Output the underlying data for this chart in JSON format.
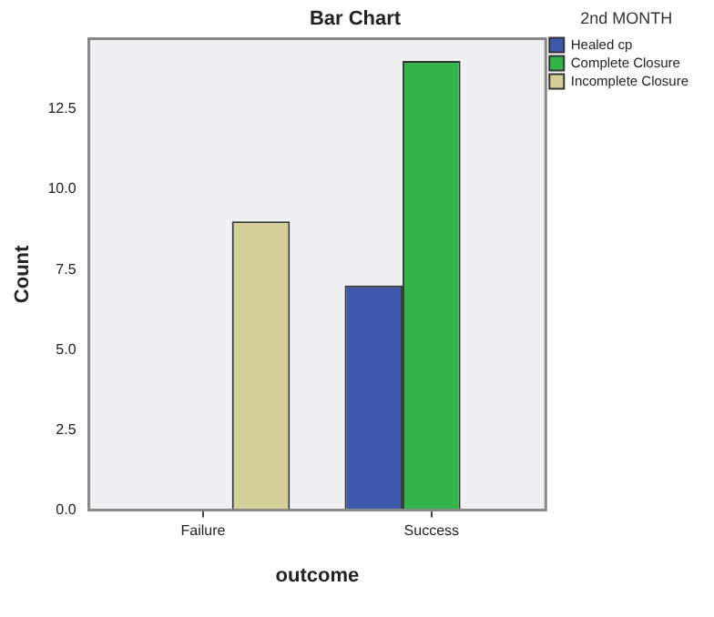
{
  "chart_data": {
    "type": "bar",
    "title": "Bar Chart",
    "xlabel": "outcome",
    "ylabel": "Count",
    "legend_title": "2nd MONTH",
    "categories": [
      "Failure",
      "Success"
    ],
    "series": [
      {
        "name": "Healed cp",
        "color": "#3e58ac",
        "values": [
          null,
          7
        ]
      },
      {
        "name": "Complete Closure",
        "color": "#32b44a",
        "values": [
          null,
          14
        ]
      },
      {
        "name": "Incomplete Closure",
        "color": "#d4ce97",
        "values": [
          9,
          null
        ]
      }
    ],
    "ylim": [
      0,
      14.7
    ],
    "yticks": [
      {
        "value": 0,
        "label": "0.0"
      },
      {
        "value": 2.5,
        "label": "2.5"
      },
      {
        "value": 5,
        "label": "5.0"
      },
      {
        "value": 7.5,
        "label": "7.5"
      },
      {
        "value": 10,
        "label": "10.0"
      },
      {
        "value": 12.5,
        "label": "12.5"
      }
    ],
    "grid": false,
    "legend": "top right"
  }
}
